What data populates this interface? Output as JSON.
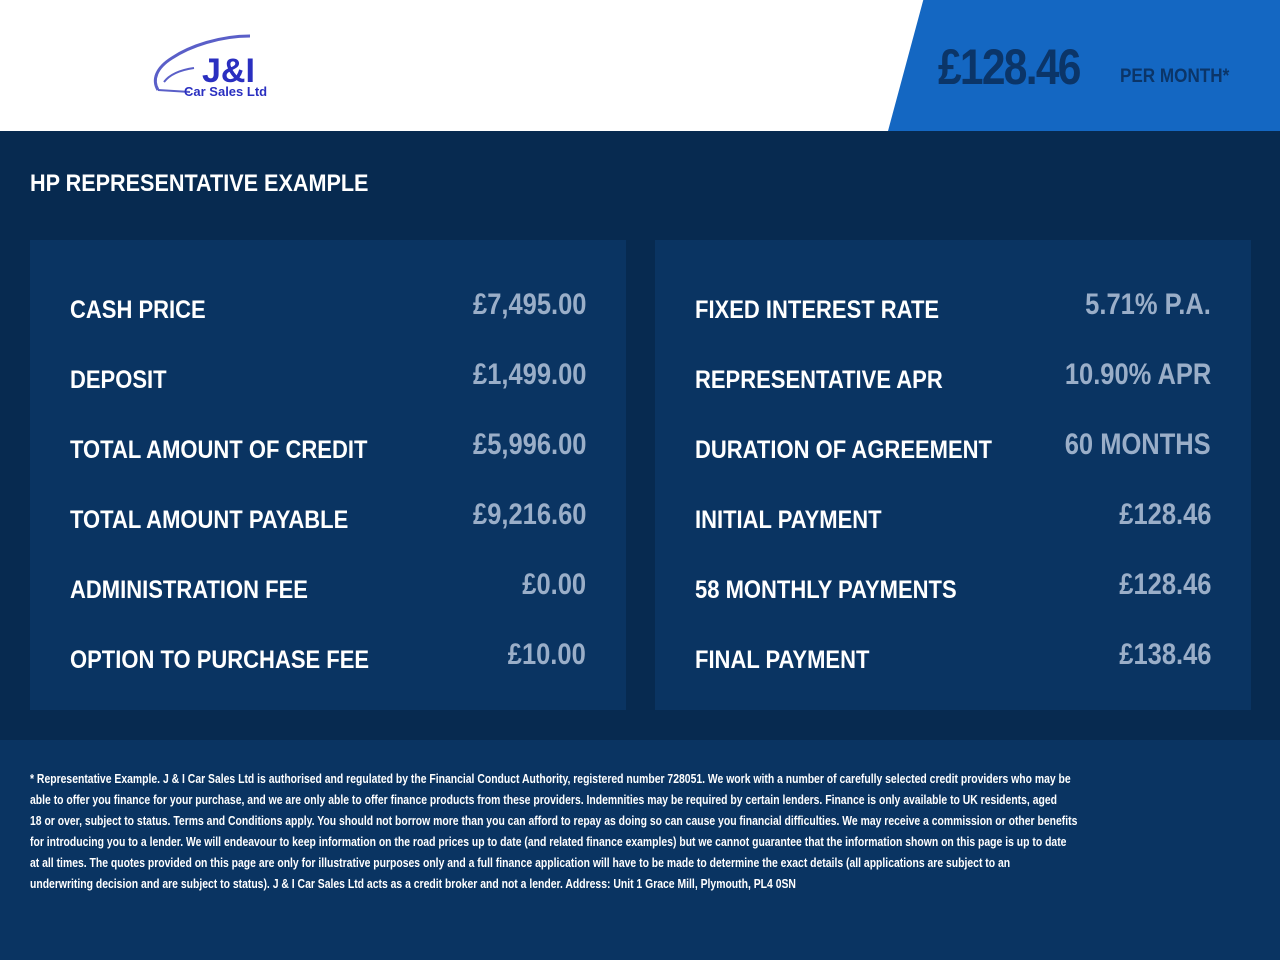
{
  "logo": {
    "brand": "J&I",
    "sub": "Car Sales Ltd"
  },
  "header": {
    "monthly_price": "£128.46",
    "per_month": "PER MONTH*",
    "accent": "#1467c2"
  },
  "section_title": "HP REPRESENTATIVE EXAMPLE",
  "left": [
    {
      "label": "CASH PRICE",
      "value": "£7,495.00"
    },
    {
      "label": "DEPOSIT",
      "value": "£1,499.00"
    },
    {
      "label": "TOTAL AMOUNT OF CREDIT",
      "value": "£5,996.00"
    },
    {
      "label": "TOTAL AMOUNT PAYABLE",
      "value": "£9,216.60"
    },
    {
      "label": "ADMINISTRATION FEE",
      "value": "£0.00"
    },
    {
      "label": "OPTION TO PURCHASE FEE",
      "value": "£10.00"
    }
  ],
  "right": [
    {
      "label": "FIXED INTEREST RATE",
      "value": "5.71% P.A."
    },
    {
      "label": "REPRESENTATIVE APR",
      "value": "10.90% APR"
    },
    {
      "label": "DURATION OF AGREEMENT",
      "value": "60 MONTHS"
    },
    {
      "label": "INITIAL PAYMENT",
      "value": "£128.46"
    },
    {
      "label": "58 MONTHLY PAYMENTS",
      "value": "£128.46"
    },
    {
      "label": "FINAL PAYMENT",
      "value": "£138.46"
    }
  ],
  "disclaimer": [
    "* Representative Example. J & I Car Sales Ltd is authorised and regulated by the Financial Conduct Authority, registered number 728051. We work with a number of carefully selected credit providers who may be",
    "able to offer you finance for your purchase, and we are only able to offer finance products from these providers. Indemnities may be required by certain lenders. Finance is only available to UK residents, aged",
    "18 or over, subject to status. Terms and Conditions apply. You should not borrow more than you can afford to repay as doing so can cause you financial difficulties. We may receive a commission or other benefits",
    "for introducing you to a lender. We will endeavour to keep information on the road prices up to date (and related finance examples) but we cannot guarantee that the information shown on this page is up to date",
    "at all times. The quotes provided on this page are only for illustrative purposes only and a full finance application will have to be made to determine the exact details (all applications are subject to an",
    "underwriting decision and are subject to status). J & I Car Sales Ltd acts as a credit broker and not a lender. Address: Unit 1 Grace Mill, Plymouth, PL4 0SN"
  ]
}
